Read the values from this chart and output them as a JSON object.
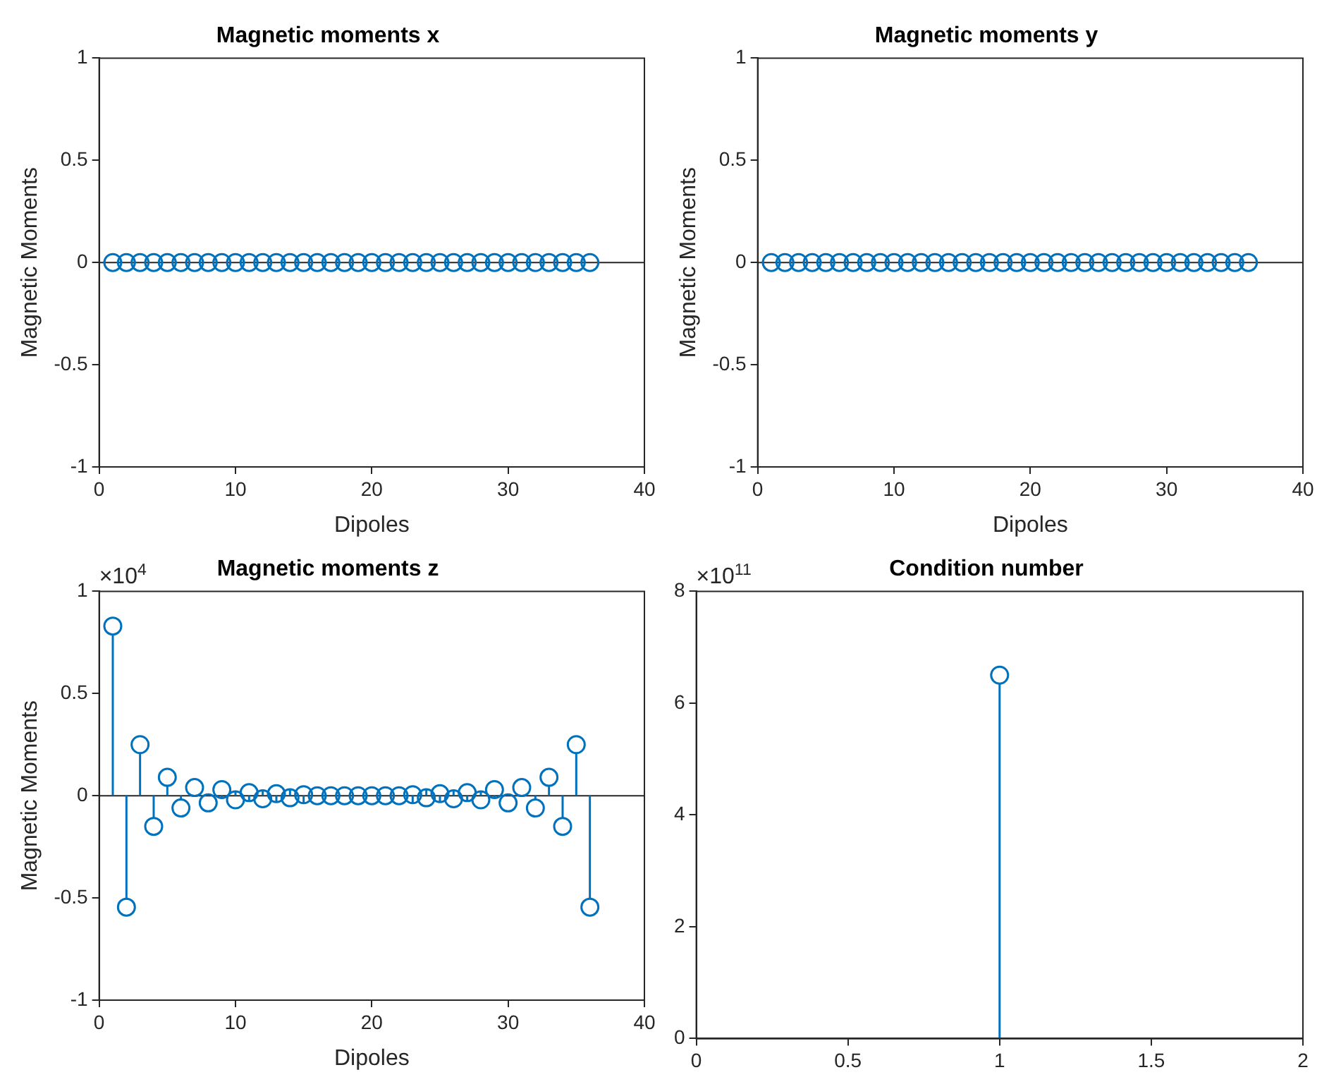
{
  "chart_data": [
    {
      "type": "lollipop",
      "title": "Magnetic moments x",
      "xlabel": "Dipoles",
      "ylabel": "Magnetic Moments",
      "color": "#0072bd",
      "marker": "circle",
      "xlim": [
        0,
        40
      ],
      "xticks": [
        0,
        10,
        20,
        30,
        40
      ],
      "ylim": [
        -1,
        1
      ],
      "yticks": [
        -1,
        -0.5,
        0,
        0.5,
        1
      ],
      "x": [
        1,
        2,
        3,
        4,
        5,
        6,
        7,
        8,
        9,
        10,
        11,
        12,
        13,
        14,
        15,
        16,
        17,
        18,
        19,
        20,
        21,
        22,
        23,
        24,
        25,
        26,
        27,
        28,
        29,
        30,
        31,
        32,
        33,
        34,
        35,
        36
      ],
      "values": [
        0,
        0,
        0,
        0,
        0,
        0,
        0,
        0,
        0,
        0,
        0,
        0,
        0,
        0,
        0,
        0,
        0,
        0,
        0,
        0,
        0,
        0,
        0,
        0,
        0,
        0,
        0,
        0,
        0,
        0,
        0,
        0,
        0,
        0,
        0,
        0
      ]
    },
    {
      "type": "lollipop",
      "title": "Magnetic moments y",
      "xlabel": "Dipoles",
      "ylabel": "Magnetic Moments",
      "color": "#0072bd",
      "marker": "circle",
      "xlim": [
        0,
        40
      ],
      "xticks": [
        0,
        10,
        20,
        30,
        40
      ],
      "ylim": [
        -1,
        1
      ],
      "yticks": [
        -1,
        -0.5,
        0,
        0.5,
        1
      ],
      "x": [
        1,
        2,
        3,
        4,
        5,
        6,
        7,
        8,
        9,
        10,
        11,
        12,
        13,
        14,
        15,
        16,
        17,
        18,
        19,
        20,
        21,
        22,
        23,
        24,
        25,
        26,
        27,
        28,
        29,
        30,
        31,
        32,
        33,
        34,
        35,
        36
      ],
      "values": [
        0,
        0,
        0,
        0,
        0,
        0,
        0,
        0,
        0,
        0,
        0,
        0,
        0,
        0,
        0,
        0,
        0,
        0,
        0,
        0,
        0,
        0,
        0,
        0,
        0,
        0,
        0,
        0,
        0,
        0,
        0,
        0,
        0,
        0,
        0,
        0
      ]
    },
    {
      "type": "lollipop",
      "title": "Magnetic moments z",
      "xlabel": "Dipoles",
      "ylabel": "Magnetic Moments",
      "color": "#0072bd",
      "marker": "circle",
      "annotations": [
        "×10$^{4}$"
      ],
      "xlim": [
        0,
        40
      ],
      "xticks": [
        0,
        10,
        20,
        30,
        40
      ],
      "ylim": [
        -1,
        1
      ],
      "yticks": [
        -1,
        -0.5,
        0,
        0.5,
        1
      ],
      "x": [
        1,
        2,
        3,
        4,
        5,
        6,
        7,
        8,
        9,
        10,
        11,
        12,
        13,
        14,
        15,
        16,
        17,
        18,
        19,
        20,
        21,
        22,
        23,
        24,
        25,
        26,
        27,
        28,
        29,
        30,
        31,
        32,
        33,
        34,
        35,
        36
      ],
      "values": [
        0.83,
        -0.545,
        0.25,
        -0.15,
        0.09,
        -0.06,
        0.04,
        -0.035,
        0.03,
        -0.02,
        0.015,
        -0.015,
        0.01,
        -0.01,
        0.005,
        0,
        0,
        0,
        0,
        0,
        0,
        0,
        0.005,
        -0.01,
        0.01,
        -0.015,
        0.015,
        -0.02,
        0.03,
        -0.035,
        0.04,
        -0.06,
        0.09,
        -0.15,
        0.25,
        -0.545
      ]
    },
    {
      "type": "lollipop",
      "title": "Condition number",
      "color": "#0072bd",
      "marker": "circle",
      "annotations": [
        "×10$^{11}$"
      ],
      "xlim": [
        0,
        2
      ],
      "xticks": [
        0,
        0.5,
        1,
        1.5,
        2
      ],
      "ylim": [
        0,
        8
      ],
      "yticks": [
        0,
        2,
        4,
        6,
        8
      ],
      "x": [
        1
      ],
      "values": [
        6.5
      ]
    }
  ]
}
